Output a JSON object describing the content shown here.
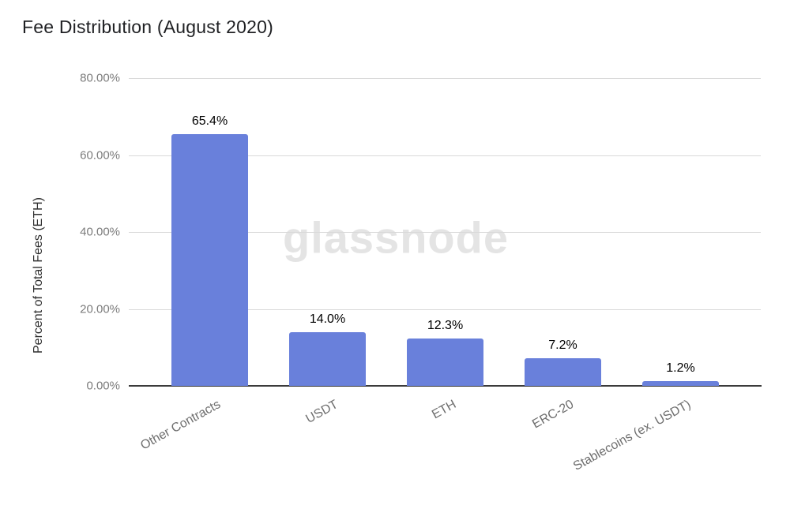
{
  "title": "Fee Distribution (August 2020)",
  "watermark": "glassnode",
  "chart_data": {
    "type": "bar",
    "title": "Fee Distribution (August 2020)",
    "categories": [
      "Other Contracts",
      "USDT",
      "ETH",
      "ERC-20",
      "Stablecoins (ex. USDT)"
    ],
    "values": [
      65.4,
      14.0,
      12.3,
      7.2,
      1.2
    ],
    "value_labels": [
      "65.4%",
      "14.0%",
      "12.3%",
      "7.2%",
      "1.2%"
    ],
    "xlabel": "",
    "ylabel": "Percent of Total Fees (ETH)",
    "ylim": [
      0,
      80
    ],
    "yticks": [
      {
        "value": 80,
        "label": "80.00%"
      },
      {
        "value": 60,
        "label": "60.00%"
      },
      {
        "value": 40,
        "label": "40.00%"
      },
      {
        "value": 20,
        "label": "20.00%"
      },
      {
        "value": 0,
        "label": "0.00%"
      }
    ],
    "grid": true,
    "legend": false,
    "x_labels_rotated": true
  },
  "colors": {
    "bar": "#6980DB",
    "gridline": "#d9d9d9",
    "axis_line": "#3b3b3b",
    "title_text": "#1f2023",
    "y_tick_text": "#7b7b7b",
    "category_text": "#6e6e6e",
    "value_label_text": "#000000",
    "watermark_text": "#e4e4e4",
    "background": "#ffffff"
  }
}
